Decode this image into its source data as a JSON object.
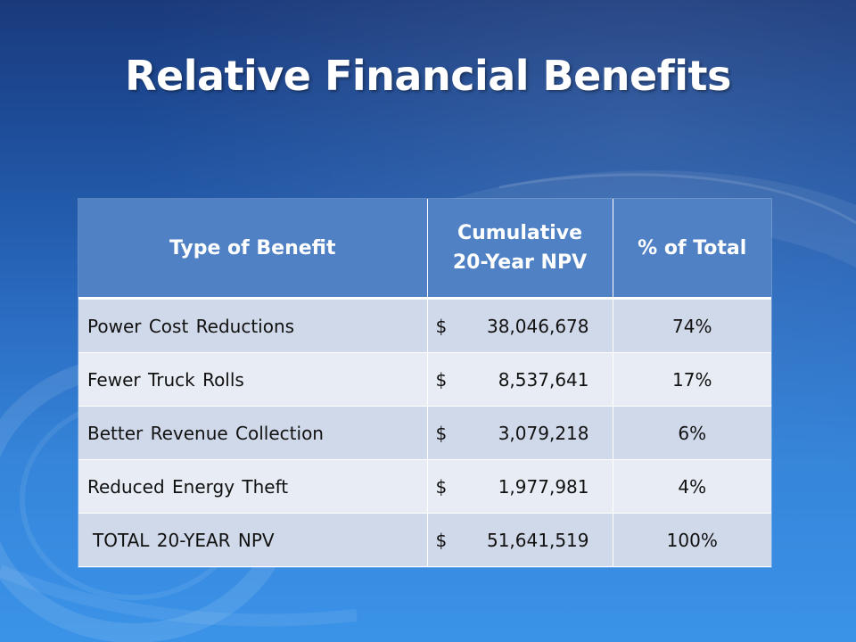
{
  "slide": {
    "title": "Relative Financial Benefits",
    "colors": {
      "background_top": "#1a3a7c",
      "background_bottom": "#3b93e8",
      "header_fill": "#4f81c4",
      "row_fill_odd": "#d0d9ea",
      "row_fill_even": "#e8edf5"
    }
  },
  "table": {
    "headers": [
      "Type of Benefit",
      "Cumulative\n20-Year NPV",
      "% of Total"
    ],
    "rows": [
      {
        "name": "Power Cost Reductions",
        "currency": "$",
        "amount": "38,046,678",
        "percent": "74%"
      },
      {
        "name": "Fewer Truck Rolls",
        "currency": "$",
        "amount": "8,537,641",
        "percent": "17%"
      },
      {
        "name": "Better Revenue Collection",
        "currency": "$",
        "amount": "3,079,218",
        "percent": "6%"
      },
      {
        "name": "Reduced Energy Theft",
        "currency": "$",
        "amount": "1,977,981",
        "percent": "4%"
      },
      {
        "name": "TOTAL 20-YEAR NPV",
        "currency": "$",
        "amount": "51,641,519",
        "percent": "100%"
      }
    ]
  }
}
